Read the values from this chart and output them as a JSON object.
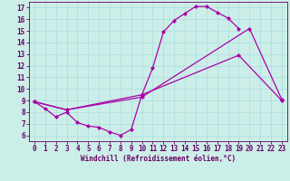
{
  "background_color": "#cceee8",
  "grid_color": "#aadddd",
  "line_color": "#aa00aa",
  "marker": "D",
  "markersize": 2.0,
  "linewidth": 0.9,
  "xlabel": "Windchill (Refroidissement éolien,°C)",
  "xlabel_fontsize": 5.5,
  "tick_fontsize": 5.5,
  "xlim": [
    -0.5,
    23.5
  ],
  "ylim": [
    5.5,
    17.5
  ],
  "yticks": [
    6,
    7,
    8,
    9,
    10,
    11,
    12,
    13,
    14,
    15,
    16,
    17
  ],
  "xticks": [
    0,
    1,
    2,
    3,
    4,
    5,
    6,
    7,
    8,
    9,
    10,
    11,
    12,
    13,
    14,
    15,
    16,
    17,
    18,
    19,
    20,
    21,
    22,
    23
  ],
  "s1x": [
    0,
    1,
    2,
    3,
    4,
    5,
    6,
    7,
    8,
    9,
    10,
    11,
    12,
    13,
    14,
    15,
    16,
    17,
    18,
    19
  ],
  "s1y": [
    8.9,
    8.3,
    7.6,
    8.0,
    7.1,
    6.8,
    6.7,
    6.3,
    6.0,
    6.5,
    9.5,
    11.8,
    14.9,
    15.9,
    16.5,
    17.1,
    17.1,
    16.6,
    16.1,
    15.2
  ],
  "s2x": [
    0,
    3,
    10,
    19,
    23
  ],
  "s2y": [
    8.9,
    8.2,
    9.5,
    12.9,
    9.0
  ],
  "s3x": [
    0,
    3,
    10,
    20,
    23
  ],
  "s3y": [
    8.9,
    8.2,
    9.3,
    15.2,
    9.1
  ]
}
